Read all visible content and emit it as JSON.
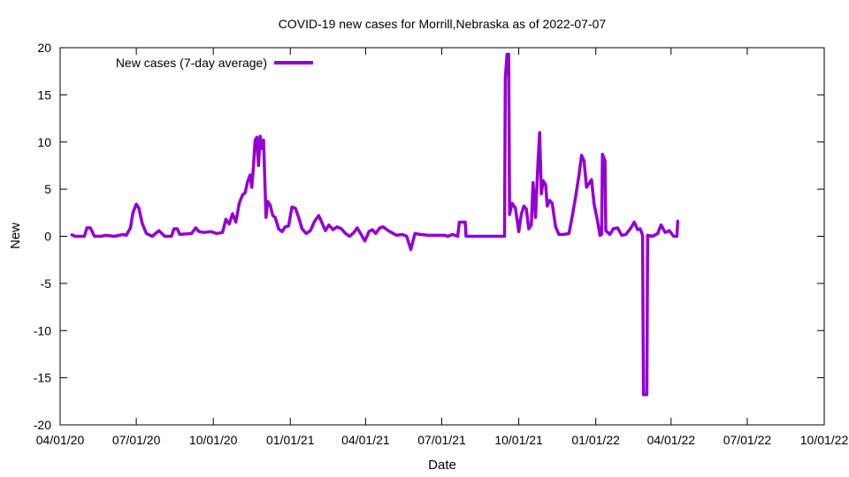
{
  "chart_data": {
    "type": "line",
    "title": "COVID-19 new cases for Morrill,Nebraska as of 2022-07-07",
    "xlabel": "Date",
    "ylabel": "New",
    "x_range": [
      "2020-04-01",
      "2022-10-01"
    ],
    "x_ticks": [
      "04/01/20",
      "07/01/20",
      "10/01/20",
      "01/01/21",
      "04/01/21",
      "07/01/21",
      "10/01/21",
      "01/01/22",
      "04/01/22",
      "07/01/22",
      "10/01/22"
    ],
    "x_tick_dates": [
      "2020-04-01",
      "2020-07-01",
      "2020-10-01",
      "2021-01-01",
      "2021-04-01",
      "2021-07-01",
      "2021-10-01",
      "2022-01-01",
      "2022-04-01",
      "2022-07-01",
      "2022-10-01"
    ],
    "ylim": [
      -20,
      20
    ],
    "y_ticks": [
      -20,
      -15,
      -10,
      -5,
      0,
      5,
      10,
      15,
      20
    ],
    "grid": false,
    "legend_position": "top-left",
    "series": [
      {
        "name": "New cases (7-day average)",
        "color": "#9400d3",
        "points": [
          [
            "2020-04-14",
            0.2
          ],
          [
            "2020-04-19",
            0
          ],
          [
            "2020-04-30",
            0
          ],
          [
            "2020-05-03",
            0.9
          ],
          [
            "2020-05-07",
            0.9
          ],
          [
            "2020-05-12",
            0
          ],
          [
            "2020-05-20",
            0
          ],
          [
            "2020-05-25",
            0.1
          ],
          [
            "2020-06-05",
            0
          ],
          [
            "2020-06-15",
            0.2
          ],
          [
            "2020-06-19",
            0.1
          ],
          [
            "2020-06-24",
            0.9
          ],
          [
            "2020-06-27",
            2.5
          ],
          [
            "2020-07-01",
            3.4
          ],
          [
            "2020-07-04",
            3.0
          ],
          [
            "2020-07-08",
            1.4
          ],
          [
            "2020-07-13",
            0.3
          ],
          [
            "2020-07-20",
            0.0
          ],
          [
            "2020-07-28",
            0.6
          ],
          [
            "2020-08-04",
            0.0
          ],
          [
            "2020-08-12",
            0.0
          ],
          [
            "2020-08-15",
            0.8
          ],
          [
            "2020-08-19",
            0.8
          ],
          [
            "2020-08-22",
            0.2
          ],
          [
            "2020-09-05",
            0.3
          ],
          [
            "2020-09-10",
            0.9
          ],
          [
            "2020-09-14",
            0.5
          ],
          [
            "2020-09-20",
            0.4
          ],
          [
            "2020-09-28",
            0.5
          ],
          [
            "2020-10-05",
            0.3
          ],
          [
            "2020-10-12",
            0.4
          ],
          [
            "2020-10-16",
            1.8
          ],
          [
            "2020-10-20",
            1.3
          ],
          [
            "2020-10-24",
            2.4
          ],
          [
            "2020-10-28",
            1.5
          ],
          [
            "2020-11-01",
            3.5
          ],
          [
            "2020-11-05",
            4.4
          ],
          [
            "2020-11-08",
            4.6
          ],
          [
            "2020-11-11",
            5.8
          ],
          [
            "2020-11-14",
            6.5
          ],
          [
            "2020-11-16",
            5.2
          ],
          [
            "2020-11-18",
            7.4
          ],
          [
            "2020-11-20",
            10.2
          ],
          [
            "2020-11-22",
            10.5
          ],
          [
            "2020-11-24",
            7.5
          ],
          [
            "2020-11-26",
            10.6
          ],
          [
            "2020-11-28",
            9.3
          ],
          [
            "2020-11-30",
            10.2
          ],
          [
            "2020-12-01",
            7.6
          ],
          [
            "2020-12-03",
            2.0
          ],
          [
            "2020-12-05",
            3.7
          ],
          [
            "2020-12-08",
            3.3
          ],
          [
            "2020-12-11",
            2.2
          ],
          [
            "2020-12-14",
            2.0
          ],
          [
            "2020-12-18",
            0.8
          ],
          [
            "2020-12-22",
            0.5
          ],
          [
            "2020-12-26",
            1.0
          ],
          [
            "2020-12-30",
            1.1
          ],
          [
            "2021-01-03",
            3.1
          ],
          [
            "2021-01-07",
            3.0
          ],
          [
            "2021-01-11",
            2.0
          ],
          [
            "2021-01-15",
            0.8
          ],
          [
            "2021-01-20",
            0.3
          ],
          [
            "2021-01-25",
            0.6
          ],
          [
            "2021-01-30",
            1.6
          ],
          [
            "2021-02-04",
            2.2
          ],
          [
            "2021-02-08",
            1.4
          ],
          [
            "2021-02-12",
            0.6
          ],
          [
            "2021-02-16",
            1.2
          ],
          [
            "2021-02-21",
            0.7
          ],
          [
            "2021-02-26",
            1.0
          ],
          [
            "2021-03-03",
            0.8
          ],
          [
            "2021-03-08",
            0.3
          ],
          [
            "2021-03-13",
            0.0
          ],
          [
            "2021-03-18",
            0.4
          ],
          [
            "2021-03-22",
            0.9
          ],
          [
            "2021-03-26",
            0.3
          ],
          [
            "2021-03-31",
            -0.5
          ],
          [
            "2021-04-05",
            0.5
          ],
          [
            "2021-04-09",
            0.7
          ],
          [
            "2021-04-13",
            0.3
          ],
          [
            "2021-04-18",
            0.9
          ],
          [
            "2021-04-22",
            1.0
          ],
          [
            "2021-04-28",
            0.6
          ],
          [
            "2021-05-04",
            0.3
          ],
          [
            "2021-05-08",
            0.1
          ],
          [
            "2021-05-15",
            0.2
          ],
          [
            "2021-05-20",
            0.0
          ],
          [
            "2021-05-25",
            -1.4
          ],
          [
            "2021-05-30",
            0.3
          ],
          [
            "2021-06-05",
            0.2
          ],
          [
            "2021-06-15",
            0.1
          ],
          [
            "2021-06-25",
            0.1
          ],
          [
            "2021-07-05",
            0.1
          ],
          [
            "2021-07-08",
            0.0
          ],
          [
            "2021-07-14",
            0.2
          ],
          [
            "2021-07-20",
            0.0
          ],
          [
            "2021-07-22",
            1.5
          ],
          [
            "2021-07-29",
            1.5
          ],
          [
            "2021-07-30",
            0.0
          ],
          [
            "2021-09-14",
            0.0
          ],
          [
            "2021-09-15",
            16.8
          ],
          [
            "2021-09-17",
            19.3
          ],
          [
            "2021-09-19",
            19.3
          ],
          [
            "2021-09-20",
            2.3
          ],
          [
            "2021-09-23",
            3.5
          ],
          [
            "2021-09-27",
            3.0
          ],
          [
            "2021-10-01",
            0.5
          ],
          [
            "2021-10-04",
            2.3
          ],
          [
            "2021-10-07",
            3.2
          ],
          [
            "2021-10-10",
            2.9
          ],
          [
            "2021-10-13",
            0.8
          ],
          [
            "2021-10-16",
            1.2
          ],
          [
            "2021-10-18",
            5.7
          ],
          [
            "2021-10-21",
            2.0
          ],
          [
            "2021-10-24",
            8.0
          ],
          [
            "2021-10-26",
            11.0
          ],
          [
            "2021-10-28",
            4.5
          ],
          [
            "2021-10-30",
            5.9
          ],
          [
            "2021-11-02",
            5.5
          ],
          [
            "2021-11-04",
            3.2
          ],
          [
            "2021-11-07",
            3.8
          ],
          [
            "2021-11-10",
            3.5
          ],
          [
            "2021-11-14",
            1.0
          ],
          [
            "2021-11-18",
            0.2
          ],
          [
            "2021-11-24",
            0.2
          ],
          [
            "2021-11-30",
            0.3
          ],
          [
            "2021-12-04",
            2.2
          ],
          [
            "2021-12-08",
            4.2
          ],
          [
            "2021-12-12",
            6.5
          ],
          [
            "2021-12-15",
            8.6
          ],
          [
            "2021-12-18",
            8.0
          ],
          [
            "2021-12-21",
            5.2
          ],
          [
            "2021-12-24",
            5.6
          ],
          [
            "2021-12-27",
            6.0
          ],
          [
            "2021-12-30",
            3.4
          ],
          [
            "2022-01-03",
            1.7
          ],
          [
            "2022-01-06",
            0.1
          ],
          [
            "2022-01-08",
            0.2
          ],
          [
            "2022-01-09",
            8.7
          ],
          [
            "2022-01-12",
            8.0
          ],
          [
            "2022-01-13",
            0.6
          ],
          [
            "2022-01-18",
            0.2
          ],
          [
            "2022-01-22",
            0.8
          ],
          [
            "2022-01-27",
            0.9
          ],
          [
            "2022-02-01",
            0.1
          ],
          [
            "2022-02-06",
            0.2
          ],
          [
            "2022-02-12",
            0.9
          ],
          [
            "2022-02-16",
            1.5
          ],
          [
            "2022-02-20",
            0.7
          ],
          [
            "2022-02-23",
            0.8
          ],
          [
            "2022-02-26",
            0.1
          ],
          [
            "2022-02-27",
            -16.8
          ],
          [
            "2022-03-03",
            -16.8
          ],
          [
            "2022-03-04",
            0.1
          ],
          [
            "2022-03-10",
            0.0
          ],
          [
            "2022-03-16",
            0.3
          ],
          [
            "2022-03-20",
            1.2
          ],
          [
            "2022-03-25",
            0.4
          ],
          [
            "2022-03-30",
            0.6
          ],
          [
            "2022-04-04",
            0.0
          ],
          [
            "2022-04-08",
            0.0
          ],
          [
            "2022-04-09",
            1.7
          ]
        ]
      }
    ]
  }
}
